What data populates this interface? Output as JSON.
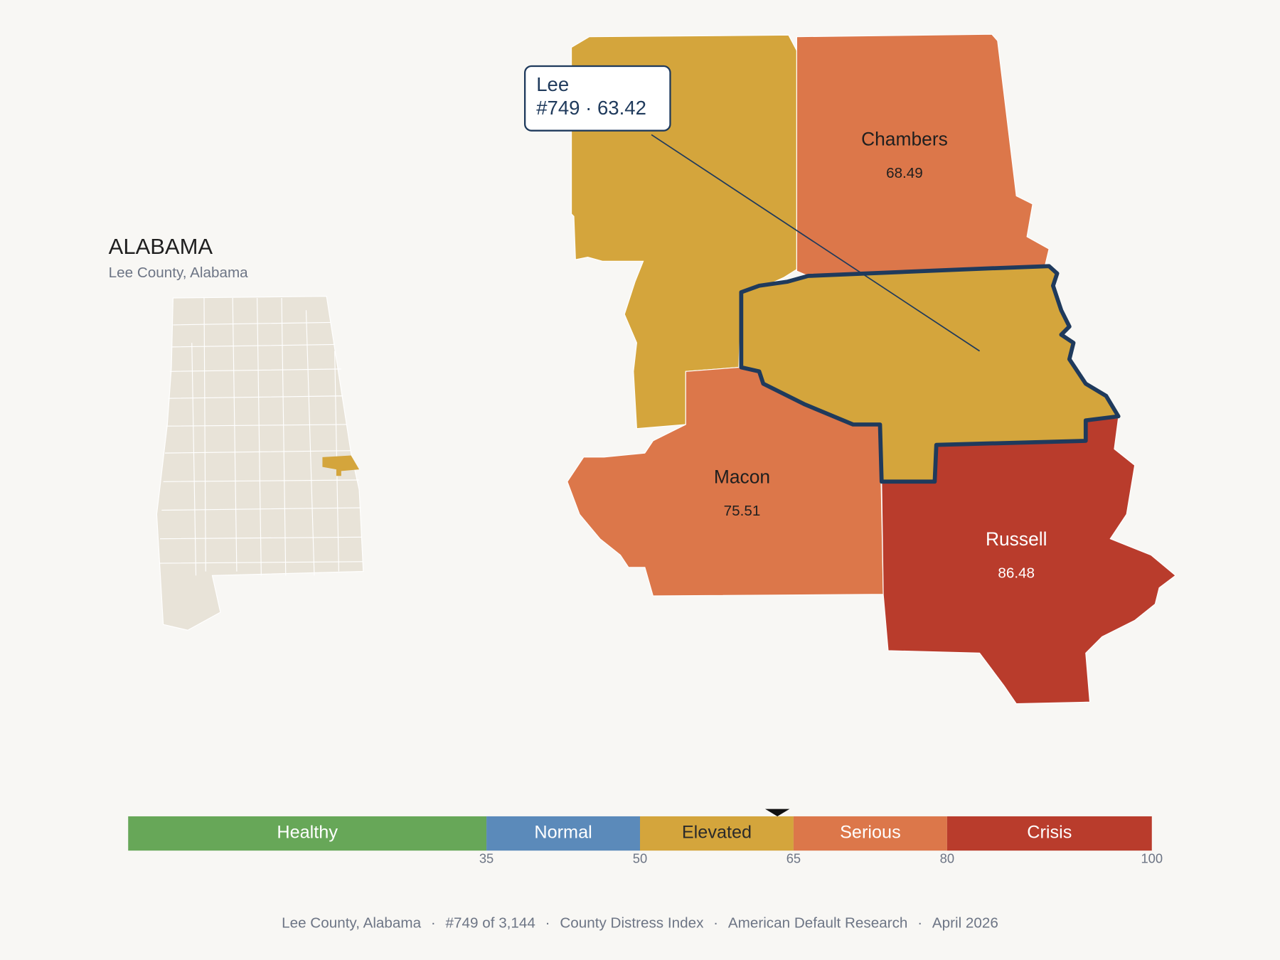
{
  "state": {
    "title": "ALABAMA",
    "subtitle": "Lee County, Alabama"
  },
  "counties": [
    {
      "name": "Lee",
      "score": 63.42,
      "rank": "#749"
    },
    {
      "name": "Chambers",
      "score": 68.49
    },
    {
      "name": "Macon",
      "score": 75.51
    },
    {
      "name": "Russell",
      "score": 86.48
    }
  ],
  "legend": {
    "xlim": [
      0,
      100
    ],
    "ticks": [
      35,
      50,
      65,
      80,
      100
    ],
    "bands": [
      {
        "label": "Healthy",
        "to": 35,
        "color": "#67a758",
        "text_color": "#ffffff"
      },
      {
        "label": "Normal",
        "to": 50,
        "color": "#5b8aba",
        "text_color": "#ffffff"
      },
      {
        "label": "Elevated",
        "to": 65,
        "color": "#d4a53c",
        "text_color": "#2a2a2a"
      },
      {
        "label": "Serious",
        "to": 80,
        "color": "#dc774a",
        "text_color": "#ffffff"
      },
      {
        "label": "Crisis",
        "to": 100,
        "color": "#b93c2c",
        "text_color": "#ffffff"
      }
    ]
  },
  "footer": {
    "items": [
      "Lee County, Alabama",
      "#749 of 3,144",
      "County Distress Index",
      "American Default Research",
      "April 2026"
    ],
    "separator": "·"
  }
}
